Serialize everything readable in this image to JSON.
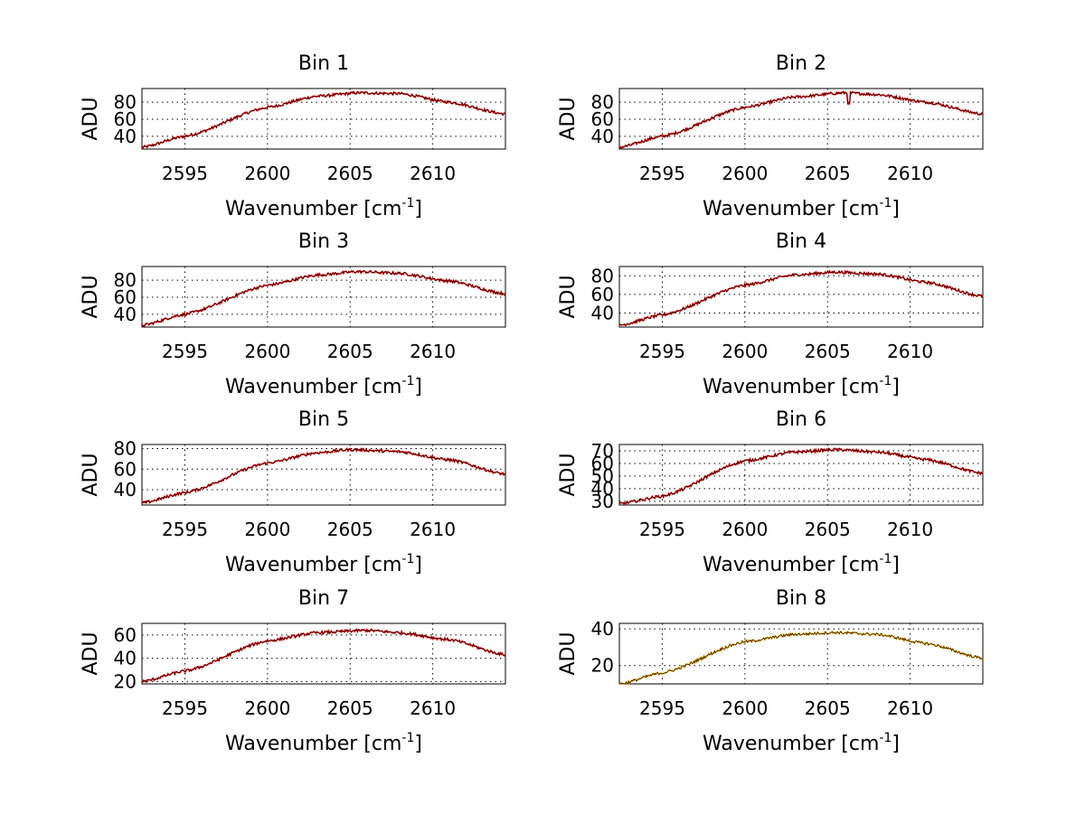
{
  "chart_data": [
    {
      "type": "line",
      "title": "Bin 1",
      "xlabel": "Wavenumber [cm",
      "xlabel_sup": "-1",
      "xlabel_close": "]",
      "ylabel": "ADU",
      "xlim": [
        2592.4,
        2614.4
      ],
      "ylim": [
        25,
        96
      ],
      "xticks": [
        2595,
        2600,
        2605,
        2610
      ],
      "yticks": [
        40,
        60,
        80
      ],
      "grid": true,
      "peak": {
        "x": 2605.5,
        "y": 91,
        "left": 27,
        "right": 66
      },
      "series": [
        {
          "values": [
            [
              2592.4,
              27
            ],
            [
              2595,
              40
            ],
            [
              2600,
              74
            ],
            [
              2603,
              87
            ],
            [
              2605.5,
              91
            ],
            [
              2608,
              90
            ],
            [
              2611,
              80
            ],
            [
              2614.4,
              66
            ]
          ]
        },
        {
          "values": [
            [
              2592.4,
              27
            ],
            [
              2595,
              40
            ],
            [
              2600,
              74
            ],
            [
              2603,
              87
            ],
            [
              2605.5,
              91
            ],
            [
              2608,
              90
            ],
            [
              2611,
              80
            ],
            [
              2614.4,
              66
            ]
          ]
        }
      ]
    },
    {
      "type": "line",
      "title": "Bin 2",
      "xlabel": "Wavenumber [cm",
      "xlabel_sup": "-1",
      "xlabel_close": "]",
      "ylabel": "ADU",
      "xlim": [
        2592.4,
        2614.4
      ],
      "ylim": [
        25,
        96
      ],
      "xticks": [
        2595,
        2600,
        2605,
        2610
      ],
      "yticks": [
        40,
        60,
        80
      ],
      "grid": true,
      "peak": {
        "x": 2606,
        "y": 91,
        "left": 27,
        "right": 66
      },
      "dip": {
        "x": 2606.3,
        "y": 78
      },
      "series": [
        {
          "values": [
            [
              2592.4,
              27
            ],
            [
              2595,
              40
            ],
            [
              2600,
              74
            ],
            [
              2603,
              86
            ],
            [
              2606,
              91
            ],
            [
              2608,
              89
            ],
            [
              2611,
              80
            ],
            [
              2614.4,
              66
            ]
          ]
        },
        {
          "values": [
            [
              2592.4,
              27
            ],
            [
              2595,
              40
            ],
            [
              2600,
              74
            ],
            [
              2603,
              86
            ],
            [
              2606,
              91
            ],
            [
              2608,
              89
            ],
            [
              2611,
              80
            ],
            [
              2614.4,
              66
            ]
          ]
        }
      ]
    },
    {
      "type": "line",
      "title": "Bin 3",
      "xlabel": "Wavenumber [cm",
      "xlabel_sup": "-1",
      "xlabel_close": "]",
      "ylabel": "ADU",
      "xlim": [
        2592.4,
        2614.4
      ],
      "ylim": [
        25,
        96
      ],
      "xticks": [
        2595,
        2600,
        2605,
        2610
      ],
      "yticks": [
        40,
        60,
        80
      ],
      "grid": true,
      "peak": {
        "x": 2605.5,
        "y": 90,
        "left": 27,
        "right": 64
      },
      "series": [
        {
          "values": [
            [
              2592.4,
              27
            ],
            [
              2595,
              40
            ],
            [
              2600,
              74
            ],
            [
              2603,
              86
            ],
            [
              2605.5,
              90
            ],
            [
              2608,
              88
            ],
            [
              2611,
              79
            ],
            [
              2614.4,
              64
            ]
          ]
        },
        {
          "values": [
            [
              2592.4,
              27
            ],
            [
              2595,
              40
            ],
            [
              2600,
              74
            ],
            [
              2603,
              86
            ],
            [
              2605.5,
              90
            ],
            [
              2608,
              88
            ],
            [
              2611,
              79
            ],
            [
              2614.4,
              64
            ]
          ]
        }
      ]
    },
    {
      "type": "line",
      "title": "Bin 4",
      "xlabel": "Wavenumber [cm",
      "xlabel_sup": "-1",
      "xlabel_close": "]",
      "ylabel": "ADU",
      "xlim": [
        2592.4,
        2614.4
      ],
      "ylim": [
        25,
        90
      ],
      "xticks": [
        2595,
        2600,
        2605,
        2610
      ],
      "yticks": [
        40,
        60,
        80
      ],
      "grid": true,
      "peak": {
        "x": 2605.5,
        "y": 84,
        "left": 27,
        "right": 58
      },
      "series": [
        {
          "values": [
            [
              2592.4,
              27
            ],
            [
              2595,
              38
            ],
            [
              2600,
              70
            ],
            [
              2603,
              81
            ],
            [
              2605.5,
              84
            ],
            [
              2608,
              82
            ],
            [
              2611,
              73
            ],
            [
              2614.4,
              58
            ]
          ]
        },
        {
          "values": [
            [
              2592.4,
              27
            ],
            [
              2595,
              38
            ],
            [
              2600,
              70
            ],
            [
              2603,
              81
            ],
            [
              2605.5,
              84
            ],
            [
              2608,
              82
            ],
            [
              2611,
              73
            ],
            [
              2614.4,
              58
            ]
          ]
        }
      ]
    },
    {
      "type": "line",
      "title": "Bin 5",
      "xlabel": "Wavenumber [cm",
      "xlabel_sup": "-1",
      "xlabel_close": "]",
      "ylabel": "ADU",
      "xlim": [
        2592.4,
        2614.4
      ],
      "ylim": [
        25,
        84
      ],
      "xticks": [
        2595,
        2600,
        2605,
        2610
      ],
      "yticks": [
        40,
        60,
        80
      ],
      "grid": true,
      "peak": {
        "x": 2605,
        "y": 79,
        "left": 27,
        "right": 55
      },
      "series": [
        {
          "values": [
            [
              2592.4,
              27
            ],
            [
              2595,
              37
            ],
            [
              2600,
              66
            ],
            [
              2603,
              76
            ],
            [
              2605,
              79
            ],
            [
              2608,
              77
            ],
            [
              2611,
              69
            ],
            [
              2614.4,
              55
            ]
          ]
        },
        {
          "values": [
            [
              2592.4,
              27
            ],
            [
              2595,
              37
            ],
            [
              2600,
              66
            ],
            [
              2603,
              76
            ],
            [
              2605,
              79
            ],
            [
              2608,
              77
            ],
            [
              2611,
              69
            ],
            [
              2614.4,
              55
            ]
          ]
        }
      ]
    },
    {
      "type": "line",
      "title": "Bin 6",
      "xlabel": "Wavenumber [cm",
      "xlabel_sup": "-1",
      "xlabel_close": "]",
      "ylabel": "ADU",
      "xlim": [
        2592.4,
        2614.4
      ],
      "ylim": [
        27,
        75
      ],
      "xticks": [
        2595,
        2600,
        2605,
        2610
      ],
      "yticks": [
        30,
        40,
        50,
        60,
        70
      ],
      "ytick_labels": [
        "30",
        "40",
        "50",
        "60",
        "70"
      ],
      "grid": true,
      "peak": {
        "x": 2605.5,
        "y": 71,
        "left": 28,
        "right": 52
      },
      "series": [
        {
          "values": [
            [
              2592.4,
              28
            ],
            [
              2595,
              34
            ],
            [
              2600,
              62
            ],
            [
              2603,
              69
            ],
            [
              2605.5,
              71
            ],
            [
              2608,
              69
            ],
            [
              2611,
              63
            ],
            [
              2614.4,
              52
            ]
          ]
        },
        {
          "values": [
            [
              2592.4,
              28
            ],
            [
              2595,
              34
            ],
            [
              2600,
              62
            ],
            [
              2603,
              69
            ],
            [
              2605.5,
              71
            ],
            [
              2608,
              69
            ],
            [
              2611,
              63
            ],
            [
              2614.4,
              52
            ]
          ]
        }
      ]
    },
    {
      "type": "line",
      "title": "Bin 7",
      "xlabel": "Wavenumber [cm",
      "xlabel_sup": "-1",
      "xlabel_close": "]",
      "ylabel": "ADU",
      "xlim": [
        2592.4,
        2614.4
      ],
      "ylim": [
        18,
        70
      ],
      "xticks": [
        2595,
        2600,
        2605,
        2610
      ],
      "yticks": [
        20,
        40,
        60
      ],
      "grid": true,
      "peak": {
        "x": 2606,
        "y": 64,
        "left": 20,
        "right": 43
      },
      "series": [
        {
          "values": [
            [
              2592.4,
              20
            ],
            [
              2595,
              29
            ],
            [
              2600,
              55
            ],
            [
              2603,
              62
            ],
            [
              2606,
              64
            ],
            [
              2608,
              62
            ],
            [
              2611,
              56
            ],
            [
              2614.4,
              43
            ]
          ]
        },
        {
          "values": [
            [
              2592.4,
              20
            ],
            [
              2595,
              29
            ],
            [
              2600,
              55
            ],
            [
              2603,
              62
            ],
            [
              2606,
              64
            ],
            [
              2608,
              62
            ],
            [
              2611,
              56
            ],
            [
              2614.4,
              43
            ]
          ]
        }
      ]
    },
    {
      "type": "line",
      "title": "Bin 8",
      "xlabel": "Wavenumber [cm",
      "xlabel_sup": "-1",
      "xlabel_close": "]",
      "ylabel": "ADU",
      "xlim": [
        2592.4,
        2614.4
      ],
      "ylim": [
        10,
        43
      ],
      "xticks": [
        2595,
        2600,
        2605,
        2610
      ],
      "yticks": [
        20,
        40
      ],
      "grid": true,
      "peak": {
        "x": 2605.5,
        "y": 38,
        "left": 10,
        "right": 24
      },
      "series": [
        {
          "values": [
            [
              2592.4,
              10
            ],
            [
              2595,
              16
            ],
            [
              2600,
              33
            ],
            [
              2603,
              37
            ],
            [
              2605.5,
              38
            ],
            [
              2608,
              37
            ],
            [
              2611,
              32
            ],
            [
              2614.4,
              24
            ]
          ]
        },
        {
          "values": [
            [
              2592.4,
              10
            ],
            [
              2595,
              16
            ],
            [
              2600,
              33
            ],
            [
              2603,
              37
            ],
            [
              2605.5,
              38
            ],
            [
              2608,
              37
            ],
            [
              2611,
              32
            ],
            [
              2614.4,
              24
            ]
          ]
        }
      ]
    }
  ],
  "colors": {
    "series_1": "#ff0000",
    "series_2": "#000000",
    "series_1_alt": "#ffaa00"
  }
}
